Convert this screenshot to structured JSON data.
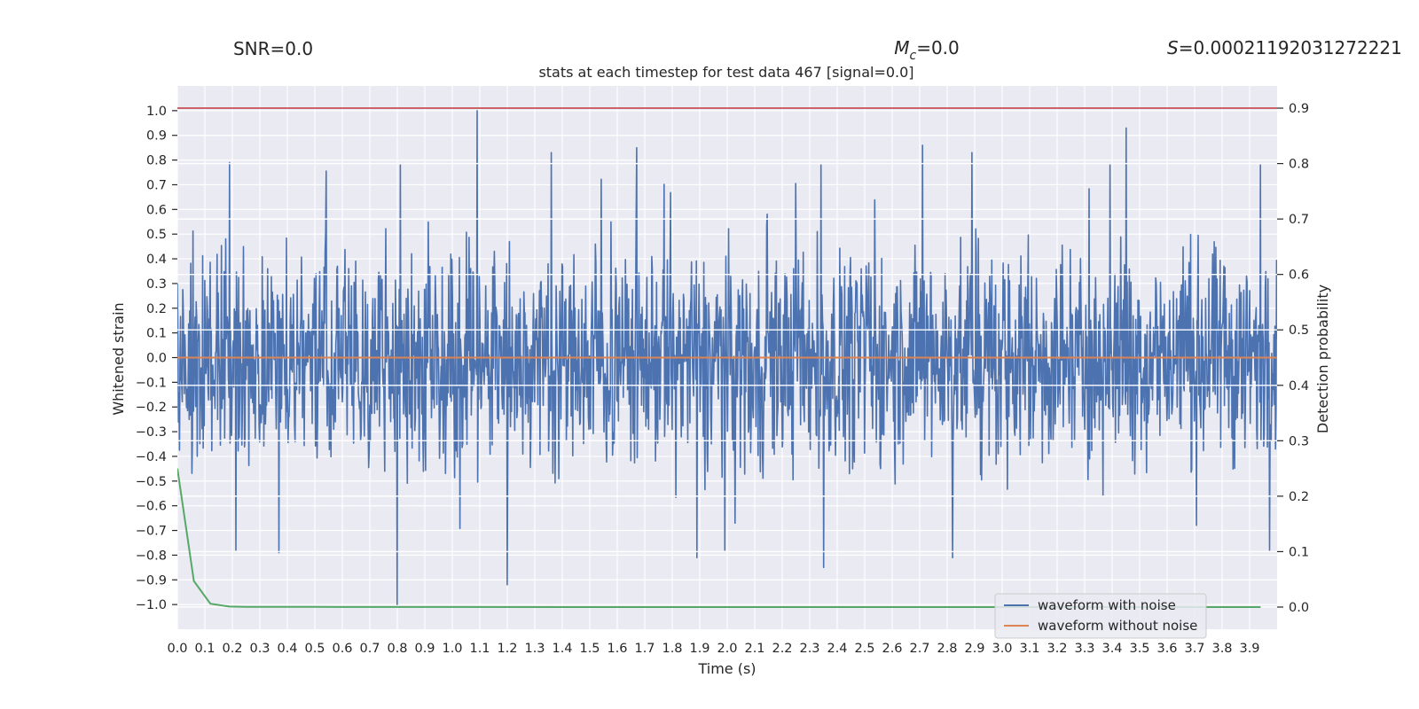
{
  "header": {
    "snr_label": "SNR=0.0",
    "mc_symbol": "M",
    "mc_subscript": "c",
    "mc_value": "=0.0",
    "s_symbol": "S",
    "s_value": "=0.00021192031272221",
    "title": "stats at each timestep for test data 467 [signal=0.0]"
  },
  "colors": {
    "background": "#eaeaf2",
    "grid": "#ffffff",
    "noisy": "#4c72b0",
    "clean": "#dd8452",
    "probability": "#55a868",
    "threshold": "#c44e52"
  },
  "chart_data": {
    "type": "line",
    "xlabel": "Time (s)",
    "ylabel_left": "Whitened strain",
    "ylabel_right": "Detection probability",
    "xlim": [
      0.0,
      4.0
    ],
    "ylim_left": [
      -1.1,
      1.1
    ],
    "ylim_right": [
      -0.04,
      0.94
    ],
    "x_ticks": [
      0.0,
      0.1,
      0.2,
      0.3,
      0.4,
      0.5,
      0.6,
      0.7,
      0.8,
      0.9,
      1.0,
      1.1,
      1.2,
      1.3,
      1.4,
      1.5,
      1.6,
      1.7,
      1.8,
      1.9,
      2.0,
      2.1,
      2.2,
      2.3,
      2.4,
      2.5,
      2.6,
      2.7,
      2.8,
      2.9,
      3.0,
      3.1,
      3.2,
      3.3,
      3.4,
      3.5,
      3.6,
      3.7,
      3.8,
      3.9
    ],
    "x_tick_labels": [
      "0.0",
      "0.1",
      "0.2",
      "0.3",
      "0.4",
      "0.5",
      "0.6",
      "0.7",
      "0.8",
      "0.9",
      "1.0",
      "1.1",
      "1.2",
      "1.3",
      "1.4",
      "1.5",
      "1.6",
      "1.7",
      "1.8",
      "1.9",
      "2.0",
      "2.1",
      "2.2",
      "2.3",
      "2.4",
      "2.5",
      "2.6",
      "2.7",
      "2.8",
      "2.9",
      "3.0",
      "3.1",
      "3.2",
      "3.3",
      "3.4",
      "3.5",
      "3.6",
      "3.7",
      "3.8",
      "3.9"
    ],
    "y_left_ticks": [
      1.0,
      0.9,
      0.8,
      0.7,
      0.6,
      0.5,
      0.4,
      0.3,
      0.2,
      0.1,
      0.0,
      -0.1,
      -0.2,
      -0.3,
      -0.4,
      -0.5,
      -0.6,
      -0.7,
      -0.8,
      -0.9,
      -1.0
    ],
    "y_left_tick_labels": [
      "1.0",
      "0.9",
      "0.8",
      "0.7",
      "0.6",
      "0.5",
      "0.4",
      "0.3",
      "0.2",
      "0.1",
      "0.0",
      "−0.1",
      "−0.2",
      "−0.3",
      "−0.4",
      "−0.5",
      "−0.6",
      "−0.7",
      "−0.8",
      "−0.9",
      "−1.0"
    ],
    "y_right_ticks": [
      0.9,
      0.8,
      0.7,
      0.6,
      0.5,
      0.4,
      0.3,
      0.2,
      0.1,
      0.0
    ],
    "y_right_tick_labels": [
      "0.9",
      "0.8",
      "0.7",
      "0.6",
      "0.5",
      "0.4",
      "0.3",
      "0.2",
      "0.1",
      "0.0"
    ],
    "series": [
      {
        "name": "waveform with noise",
        "axis": "left",
        "kind": "noise",
        "x_range": [
          0.0,
          4.0
        ],
        "n_samples": 2048,
        "typical_amplitude": 0.3,
        "min": -1.0,
        "max": 1.0,
        "peaks": [
          {
            "x": 1.09,
            "y": 1.0
          },
          {
            "x": 3.45,
            "y": 0.93
          },
          {
            "x": 1.67,
            "y": 0.85
          },
          {
            "x": 2.71,
            "y": 0.86
          },
          {
            "x": 2.89,
            "y": 0.83
          },
          {
            "x": 1.36,
            "y": 0.83
          },
          {
            "x": 0.19,
            "y": 0.79
          },
          {
            "x": 0.8,
            "y": -1.0
          },
          {
            "x": 1.2,
            "y": -0.92
          },
          {
            "x": 2.35,
            "y": -0.85
          },
          {
            "x": 2.82,
            "y": -0.81
          },
          {
            "x": 1.89,
            "y": -0.81
          },
          {
            "x": 0.37,
            "y": -0.79
          }
        ]
      },
      {
        "name": "waveform without noise",
        "axis": "left",
        "x": [
          0.0,
          4.0
        ],
        "values": [
          0.0,
          0.0
        ]
      },
      {
        "name": "Detection probability",
        "axis": "right",
        "x": [
          0.0,
          0.06,
          0.12,
          0.19,
          0.25,
          0.5,
          1.0,
          2.0,
          3.0,
          3.94
        ],
        "values": [
          0.25,
          0.047,
          0.006,
          0.001,
          0.0005,
          0.0003,
          0.0001,
          0.0,
          0.0,
          0.0
        ]
      },
      {
        "name": "threshold",
        "axis": "right",
        "x": [
          0.0,
          4.0
        ],
        "values": [
          0.9,
          0.9
        ]
      }
    ],
    "legend": {
      "placement": "lower-right",
      "entries": [
        "waveform with noise",
        "waveform without noise"
      ]
    }
  }
}
